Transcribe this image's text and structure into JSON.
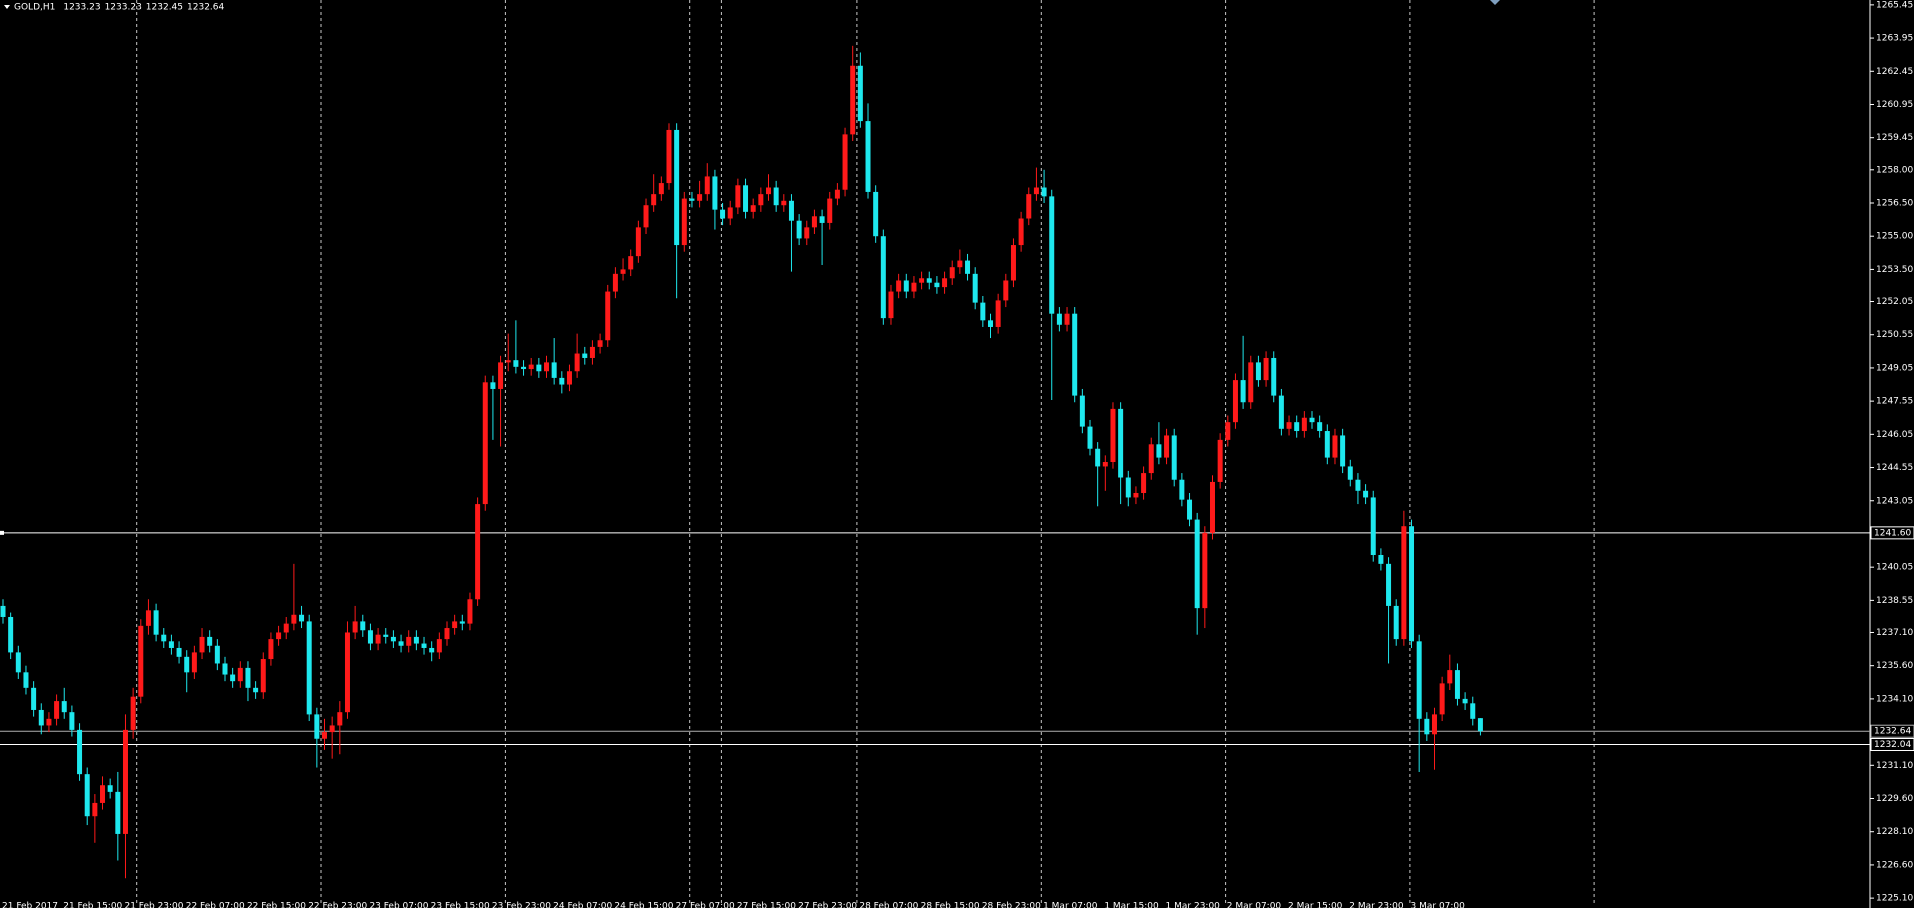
{
  "chart_data": {
    "type": "candlestick",
    "symbol": "GOLD,H1",
    "header_values": [
      1233.23,
      1233.23,
      1232.45,
      1232.64
    ],
    "up_color": "#ff1a1a",
    "down_color": "#1ee8ee",
    "ylim": [
      1224.88,
      1265.67
    ],
    "yticks": [
      1265.45,
      1263.95,
      1262.45,
      1260.95,
      1259.45,
      {
        "value": 1258,
        "label": "1258.00"
      },
      {
        "value": 1256.5,
        "label": "1256.50"
      },
      {
        "value": 1255,
        "label": "1255.00"
      },
      {
        "value": 1253.5,
        "label": "1253.50"
      },
      1252.05,
      1250.55,
      1249.05,
      1247.55,
      1246.05,
      1244.55,
      1243.05,
      1240.05,
      1238.55,
      {
        "value": 1237.1,
        "label": "1237.10"
      },
      {
        "value": 1235.6,
        "label": "1235.60"
      },
      {
        "value": 1234.1,
        "label": "1234.10"
      },
      {
        "value": 1231.1,
        "label": "1231.10"
      },
      {
        "value": 1229.6,
        "label": "1229.60"
      },
      {
        "value": 1228.1,
        "label": "1228.10"
      },
      {
        "value": 1226.6,
        "label": "1226.60"
      },
      {
        "value": 1225.1,
        "label": "1225.10"
      }
    ],
    "hlines": [
      {
        "value": 1241.6,
        "label": "1241.60",
        "color": "#ffffff"
      },
      {
        "value": 1232.64,
        "color": "#b0b0b0"
      },
      {
        "value": 1232.04,
        "color": "#ffffff"
      }
    ],
    "x_labels": [
      "21 Feb 2017",
      "21 Feb 15:00",
      "21 Feb 23:00",
      "22 Feb 07:00",
      "22 Feb 15:00",
      "22 Feb 23:00",
      "23 Feb 07:00",
      "23 Feb 15:00",
      "23 Feb 23:00",
      "24 Feb 07:00",
      "24 Feb 15:00",
      "27 Feb 07:00",
      "27 Feb 15:00",
      "27 Feb 23:00",
      "28 Feb 07:00",
      "28 Feb 15:00",
      "28 Feb 23:00",
      "1 Mar 07:00",
      "1 Mar 15:00",
      "1 Mar 23:00",
      "2 Mar 07:00",
      "2 Mar 15:00",
      "2 Mar 23:00",
      "3 Mar 07:00"
    ],
    "candles": [
      [
        1238.3,
        1238.6,
        1237.5,
        1237.8
      ],
      [
        1237.8,
        1238.0,
        1235.9,
        1236.2
      ],
      [
        1236.2,
        1236.5,
        1235.0,
        1235.3
      ],
      [
        1235.3,
        1235.6,
        1234.3,
        1234.6
      ],
      [
        1234.6,
        1234.9,
        1233.3,
        1233.6
      ],
      [
        1233.6,
        1233.9,
        1232.5,
        1232.9
      ],
      [
        1232.9,
        1233.5,
        1232.6,
        1233.2
      ],
      [
        1233.2,
        1234.3,
        1232.9,
        1234.0
      ],
      [
        1234.0,
        1234.6,
        1233.2,
        1233.5
      ],
      [
        1233.5,
        1233.8,
        1232.4,
        1232.7
      ],
      [
        1232.7,
        1233.0,
        1230.4,
        1230.7
      ],
      [
        1230.7,
        1231.0,
        1228.4,
        1228.8
      ],
      [
        1228.8,
        1229.8,
        1227.6,
        1229.4
      ],
      [
        1229.4,
        1230.6,
        1229.1,
        1230.2
      ],
      [
        1230.2,
        1230.5,
        1229.6,
        1229.9
      ],
      [
        1229.9,
        1230.8,
        1226.8,
        1228.0
      ],
      [
        1228.0,
        1233.4,
        1226.0,
        1232.7
      ],
      [
        1232.7,
        1234.6,
        1232.3,
        1234.2
      ],
      [
        1234.2,
        1237.7,
        1233.9,
        1237.4
      ],
      [
        1237.4,
        1238.6,
        1237.0,
        1238.1
      ],
      [
        1238.1,
        1238.4,
        1236.7,
        1237.0
      ],
      [
        1237.0,
        1237.3,
        1236.4,
        1236.7
      ],
      [
        1236.7,
        1237.0,
        1236.1,
        1236.4
      ],
      [
        1236.4,
        1236.7,
        1235.7,
        1236.0
      ],
      [
        1236.0,
        1236.3,
        1234.4,
        1235.3
      ],
      [
        1235.3,
        1236.5,
        1235.0,
        1236.2
      ],
      [
        1236.2,
        1237.3,
        1235.9,
        1236.9
      ],
      [
        1236.9,
        1237.2,
        1236.2,
        1236.5
      ],
      [
        1236.5,
        1236.8,
        1235.4,
        1235.7
      ],
      [
        1235.7,
        1236.0,
        1234.9,
        1235.2
      ],
      [
        1235.2,
        1235.5,
        1234.6,
        1234.9
      ],
      [
        1234.9,
        1235.8,
        1234.6,
        1235.5
      ],
      [
        1235.5,
        1235.8,
        1234.0,
        1234.6
      ],
      [
        1234.6,
        1234.9,
        1234.1,
        1234.4
      ],
      [
        1234.4,
        1236.2,
        1234.1,
        1235.9
      ],
      [
        1235.9,
        1237.1,
        1235.6,
        1236.8
      ],
      [
        1236.8,
        1237.4,
        1236.5,
        1237.1
      ],
      [
        1237.1,
        1237.8,
        1236.8,
        1237.5
      ],
      [
        1237.5,
        1240.2,
        1237.2,
        1237.9
      ],
      [
        1237.9,
        1238.3,
        1237.3,
        1237.6
      ],
      [
        1237.6,
        1237.9,
        1233.1,
        1233.4
      ],
      [
        1233.4,
        1233.7,
        1231.0,
        1232.3
      ],
      [
        1232.3,
        1233.2,
        1231.8,
        1232.6
      ],
      [
        1232.6,
        1233.3,
        1231.4,
        1232.9
      ],
      [
        1232.9,
        1234.0,
        1231.6,
        1233.5
      ],
      [
        1233.5,
        1237.6,
        1233.2,
        1237.1
      ],
      [
        1237.1,
        1238.3,
        1236.8,
        1237.6
      ],
      [
        1237.6,
        1237.9,
        1236.9,
        1237.2
      ],
      [
        1237.2,
        1237.5,
        1236.3,
        1236.6
      ],
      [
        1236.6,
        1237.3,
        1236.3,
        1237.0
      ],
      [
        1237.0,
        1237.3,
        1236.6,
        1236.9
      ],
      [
        1236.9,
        1237.2,
        1236.4,
        1236.7
      ],
      [
        1236.7,
        1237.0,
        1236.2,
        1236.5
      ],
      [
        1236.5,
        1237.2,
        1236.2,
        1236.9
      ],
      [
        1236.9,
        1237.2,
        1236.3,
        1236.6
      ],
      [
        1236.6,
        1236.9,
        1236.1,
        1236.4
      ],
      [
        1236.4,
        1236.7,
        1235.8,
        1236.2
      ],
      [
        1236.2,
        1237.1,
        1235.9,
        1236.8
      ],
      [
        1236.8,
        1237.6,
        1236.5,
        1237.3
      ],
      [
        1237.3,
        1237.9,
        1237.0,
        1237.6
      ],
      [
        1237.6,
        1237.9,
        1237.2,
        1237.5
      ],
      [
        1237.5,
        1238.9,
        1237.2,
        1238.6
      ],
      [
        1238.6,
        1243.2,
        1238.3,
        1242.9
      ],
      [
        1242.9,
        1248.7,
        1242.6,
        1248.4
      ],
      [
        1248.4,
        1248.7,
        1245.8,
        1248.1
      ],
      [
        1248.1,
        1249.6,
        1245.5,
        1249.3
      ],
      [
        1249.3,
        1250.6,
        1248.9,
        1249.4
      ],
      [
        1249.4,
        1251.2,
        1248.8,
        1249.1
      ],
      [
        1249.1,
        1249.4,
        1248.7,
        1249.0
      ],
      [
        1249.0,
        1249.5,
        1248.7,
        1249.2
      ],
      [
        1249.2,
        1249.5,
        1248.6,
        1248.9
      ],
      [
        1248.9,
        1249.6,
        1248.6,
        1249.3
      ],
      [
        1249.3,
        1250.4,
        1248.3,
        1248.6
      ],
      [
        1248.6,
        1248.9,
        1247.9,
        1248.3
      ],
      [
        1248.3,
        1249.2,
        1248.0,
        1248.9
      ],
      [
        1248.9,
        1250.6,
        1248.6,
        1249.7
      ],
      [
        1249.7,
        1250.0,
        1249.2,
        1249.5
      ],
      [
        1249.5,
        1250.3,
        1249.2,
        1250.0
      ],
      [
        1250.0,
        1250.6,
        1249.7,
        1250.3
      ],
      [
        1250.3,
        1252.8,
        1250.0,
        1252.5
      ],
      [
        1252.5,
        1253.6,
        1252.2,
        1253.3
      ],
      [
        1253.3,
        1254.0,
        1253.0,
        1253.5
      ],
      [
        1253.5,
        1254.4,
        1253.2,
        1254.1
      ],
      [
        1254.1,
        1255.7,
        1253.8,
        1255.4
      ],
      [
        1255.4,
        1256.7,
        1255.1,
        1256.4
      ],
      [
        1256.4,
        1257.8,
        1256.1,
        1256.9
      ],
      [
        1256.9,
        1257.7,
        1256.6,
        1257.4
      ],
      [
        1257.4,
        1260.1,
        1257.1,
        1259.8
      ],
      [
        1259.8,
        1260.1,
        1252.2,
        1254.6
      ],
      [
        1254.6,
        1257.0,
        1254.3,
        1256.7
      ],
      [
        1256.7,
        1257.0,
        1256.3,
        1256.6
      ],
      [
        1256.6,
        1257.5,
        1256.3,
        1256.9
      ],
      [
        1256.9,
        1258.3,
        1256.6,
        1257.7
      ],
      [
        1257.7,
        1258.0,
        1255.3,
        1256.2
      ],
      [
        1256.2,
        1256.5,
        1255.5,
        1255.8
      ],
      [
        1255.8,
        1256.6,
        1255.5,
        1256.3
      ],
      [
        1256.3,
        1257.6,
        1256.0,
        1257.3
      ],
      [
        1257.3,
        1257.6,
        1255.8,
        1256.1
      ],
      [
        1256.1,
        1256.7,
        1255.8,
        1256.4
      ],
      [
        1256.4,
        1257.2,
        1256.1,
        1256.9
      ],
      [
        1256.9,
        1257.8,
        1256.6,
        1257.2
      ],
      [
        1257.2,
        1257.5,
        1256.1,
        1256.4
      ],
      [
        1256.4,
        1256.9,
        1256.1,
        1256.6
      ],
      [
        1256.6,
        1256.9,
        1253.4,
        1255.7
      ],
      [
        1255.7,
        1256.0,
        1254.6,
        1254.9
      ],
      [
        1254.9,
        1255.7,
        1254.6,
        1255.4
      ],
      [
        1255.4,
        1256.2,
        1255.1,
        1255.9
      ],
      [
        1255.9,
        1256.2,
        1253.7,
        1255.6
      ],
      [
        1255.6,
        1257.0,
        1255.3,
        1256.7
      ],
      [
        1256.7,
        1257.4,
        1256.4,
        1257.1
      ],
      [
        1257.1,
        1259.9,
        1256.8,
        1259.6
      ],
      [
        1259.6,
        1263.6,
        1259.3,
        1262.7
      ],
      [
        1262.7,
        1263.3,
        1259.9,
        1260.2
      ],
      [
        1260.2,
        1261.0,
        1256.7,
        1257.0
      ],
      [
        1257.0,
        1257.3,
        1254.7,
        1255.0
      ],
      [
        1255.0,
        1255.3,
        1251.0,
        1251.3
      ],
      [
        1251.3,
        1252.8,
        1251.0,
        1252.5
      ],
      [
        1252.5,
        1253.3,
        1252.2,
        1253.0
      ],
      [
        1253.0,
        1253.3,
        1252.2,
        1252.5
      ],
      [
        1252.5,
        1253.2,
        1252.2,
        1252.9
      ],
      [
        1252.9,
        1253.4,
        1252.6,
        1253.1
      ],
      [
        1253.1,
        1253.4,
        1252.6,
        1252.9
      ],
      [
        1252.9,
        1253.2,
        1252.4,
        1252.7
      ],
      [
        1252.7,
        1253.4,
        1252.4,
        1253.1
      ],
      [
        1253.1,
        1253.9,
        1252.8,
        1253.6
      ],
      [
        1253.6,
        1254.4,
        1253.3,
        1253.9
      ],
      [
        1253.9,
        1254.2,
        1253.0,
        1253.3
      ],
      [
        1253.3,
        1253.6,
        1251.7,
        1252.0
      ],
      [
        1252.0,
        1252.3,
        1250.9,
        1251.2
      ],
      [
        1251.2,
        1251.5,
        1250.4,
        1250.9
      ],
      [
        1250.9,
        1252.4,
        1250.6,
        1252.1
      ],
      [
        1252.1,
        1253.3,
        1251.8,
        1253.0
      ],
      [
        1253.0,
        1254.9,
        1252.7,
        1254.6
      ],
      [
        1254.6,
        1256.1,
        1254.3,
        1255.8
      ],
      [
        1255.8,
        1257.2,
        1255.5,
        1256.9
      ],
      [
        1256.9,
        1258.1,
        1256.6,
        1257.2
      ],
      [
        1257.2,
        1258.0,
        1256.5,
        1256.8
      ],
      [
        1256.8,
        1257.1,
        1247.6,
        1251.5
      ],
      [
        1251.5,
        1251.8,
        1250.7,
        1251.0
      ],
      [
        1251.0,
        1251.8,
        1250.7,
        1251.5
      ],
      [
        1251.5,
        1251.8,
        1247.5,
        1247.8
      ],
      [
        1247.8,
        1248.1,
        1246.1,
        1246.4
      ],
      [
        1246.4,
        1246.7,
        1245.1,
        1245.4
      ],
      [
        1245.4,
        1245.7,
        1242.8,
        1244.6
      ],
      [
        1244.6,
        1245.1,
        1243.5,
        1244.8
      ],
      [
        1244.8,
        1247.5,
        1244.5,
        1247.2
      ],
      [
        1247.2,
        1247.5,
        1242.9,
        1244.1
      ],
      [
        1244.1,
        1244.4,
        1242.8,
        1243.2
      ],
      [
        1243.2,
        1243.7,
        1242.9,
        1243.4
      ],
      [
        1243.4,
        1244.6,
        1243.1,
        1244.3
      ],
      [
        1244.3,
        1245.9,
        1244.0,
        1245.6
      ],
      [
        1245.6,
        1246.6,
        1244.7,
        1245.0
      ],
      [
        1245.0,
        1246.3,
        1244.7,
        1246.0
      ],
      [
        1246.0,
        1246.3,
        1243.7,
        1244.0
      ],
      [
        1244.0,
        1244.3,
        1242.8,
        1243.1
      ],
      [
        1243.1,
        1243.4,
        1241.9,
        1242.2
      ],
      [
        1242.2,
        1242.5,
        1237.0,
        1238.2
      ],
      [
        1238.2,
        1241.9,
        1237.3,
        1241.6
      ],
      [
        1241.6,
        1244.2,
        1241.3,
        1243.9
      ],
      [
        1243.9,
        1246.1,
        1243.6,
        1245.8
      ],
      [
        1245.8,
        1246.9,
        1245.5,
        1246.6
      ],
      [
        1246.6,
        1248.8,
        1246.3,
        1248.5
      ],
      [
        1248.5,
        1250.5,
        1247.2,
        1247.5
      ],
      [
        1247.5,
        1249.6,
        1247.2,
        1249.3
      ],
      [
        1249.3,
        1249.6,
        1248.2,
        1248.5
      ],
      [
        1248.5,
        1249.8,
        1248.2,
        1249.5
      ],
      [
        1249.5,
        1249.8,
        1247.5,
        1247.8
      ],
      [
        1247.8,
        1248.1,
        1246.0,
        1246.3
      ],
      [
        1246.3,
        1246.9,
        1246.0,
        1246.6
      ],
      [
        1246.6,
        1246.9,
        1245.9,
        1246.2
      ],
      [
        1246.2,
        1247.1,
        1245.9,
        1246.8
      ],
      [
        1246.8,
        1247.1,
        1246.3,
        1246.6
      ],
      [
        1246.6,
        1246.9,
        1245.9,
        1246.2
      ],
      [
        1246.2,
        1246.5,
        1244.7,
        1245.0
      ],
      [
        1245.0,
        1246.3,
        1244.7,
        1246.0
      ],
      [
        1246.0,
        1246.3,
        1244.3,
        1244.6
      ],
      [
        1244.6,
        1244.9,
        1243.7,
        1244.0
      ],
      [
        1244.0,
        1244.3,
        1242.9,
        1243.5
      ],
      [
        1243.5,
        1243.8,
        1242.9,
        1243.2
      ],
      [
        1243.2,
        1243.5,
        1240.3,
        1240.6
      ],
      [
        1240.6,
        1240.9,
        1239.9,
        1240.2
      ],
      [
        1240.2,
        1240.5,
        1235.7,
        1238.3
      ],
      [
        1238.3,
        1238.6,
        1236.5,
        1236.8
      ],
      [
        1236.8,
        1242.6,
        1236.5,
        1241.9
      ],
      [
        1241.9,
        1242.2,
        1236.4,
        1236.7
      ],
      [
        1236.7,
        1237.0,
        1230.8,
        1233.2
      ],
      [
        1233.2,
        1233.5,
        1232.2,
        1232.5
      ],
      [
        1232.5,
        1233.7,
        1230.9,
        1233.4
      ],
      [
        1233.4,
        1235.1,
        1233.1,
        1234.8
      ],
      [
        1234.8,
        1236.1,
        1234.5,
        1235.4
      ],
      [
        1235.4,
        1235.7,
        1233.8,
        1234.1
      ],
      [
        1234.1,
        1234.4,
        1233.6,
        1233.9
      ],
      [
        1233.9,
        1234.2,
        1232.9,
        1233.2
      ],
      [
        1233.23,
        1233.23,
        1232.45,
        1232.64
      ]
    ]
  }
}
